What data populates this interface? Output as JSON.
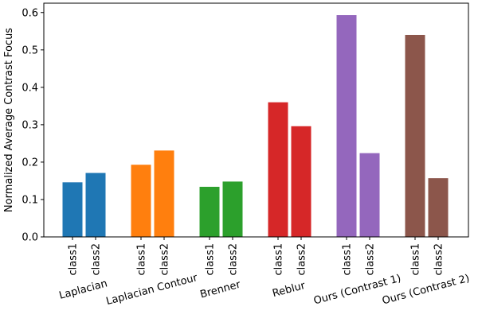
{
  "chart_data": {
    "type": "bar",
    "title": "",
    "xlabel": "",
    "ylabel": "Normalized Average Contrast Focus",
    "ylim": [
      0,
      0.625
    ],
    "yticks": [
      0.0,
      0.1,
      0.2,
      0.3,
      0.4,
      0.5,
      0.6
    ],
    "ytick_labels": [
      "0.0",
      "0.1",
      "0.2",
      "0.3",
      "0.4",
      "0.5",
      "0.6"
    ],
    "grid": false,
    "legend": "none",
    "bar_labels": [
      "class1",
      "class2"
    ],
    "groups": [
      {
        "name": "Laplacian",
        "color": "#1f77b4",
        "values": [
          0.146,
          0.171
        ]
      },
      {
        "name": "Laplacian Contour",
        "color": "#ff7f0e",
        "values": [
          0.193,
          0.231
        ]
      },
      {
        "name": "Brenner",
        "color": "#2ca02c",
        "values": [
          0.134,
          0.148
        ]
      },
      {
        "name": "Reblur",
        "color": "#d62728",
        "values": [
          0.36,
          0.296
        ]
      },
      {
        "name": "Ours (Contrast 1)",
        "color": "#9467bd",
        "values": [
          0.593,
          0.224
        ]
      },
      {
        "name": "Ours (Contrast 2)",
        "color": "#8c564b",
        "values": [
          0.54,
          0.157
        ]
      }
    ]
  }
}
